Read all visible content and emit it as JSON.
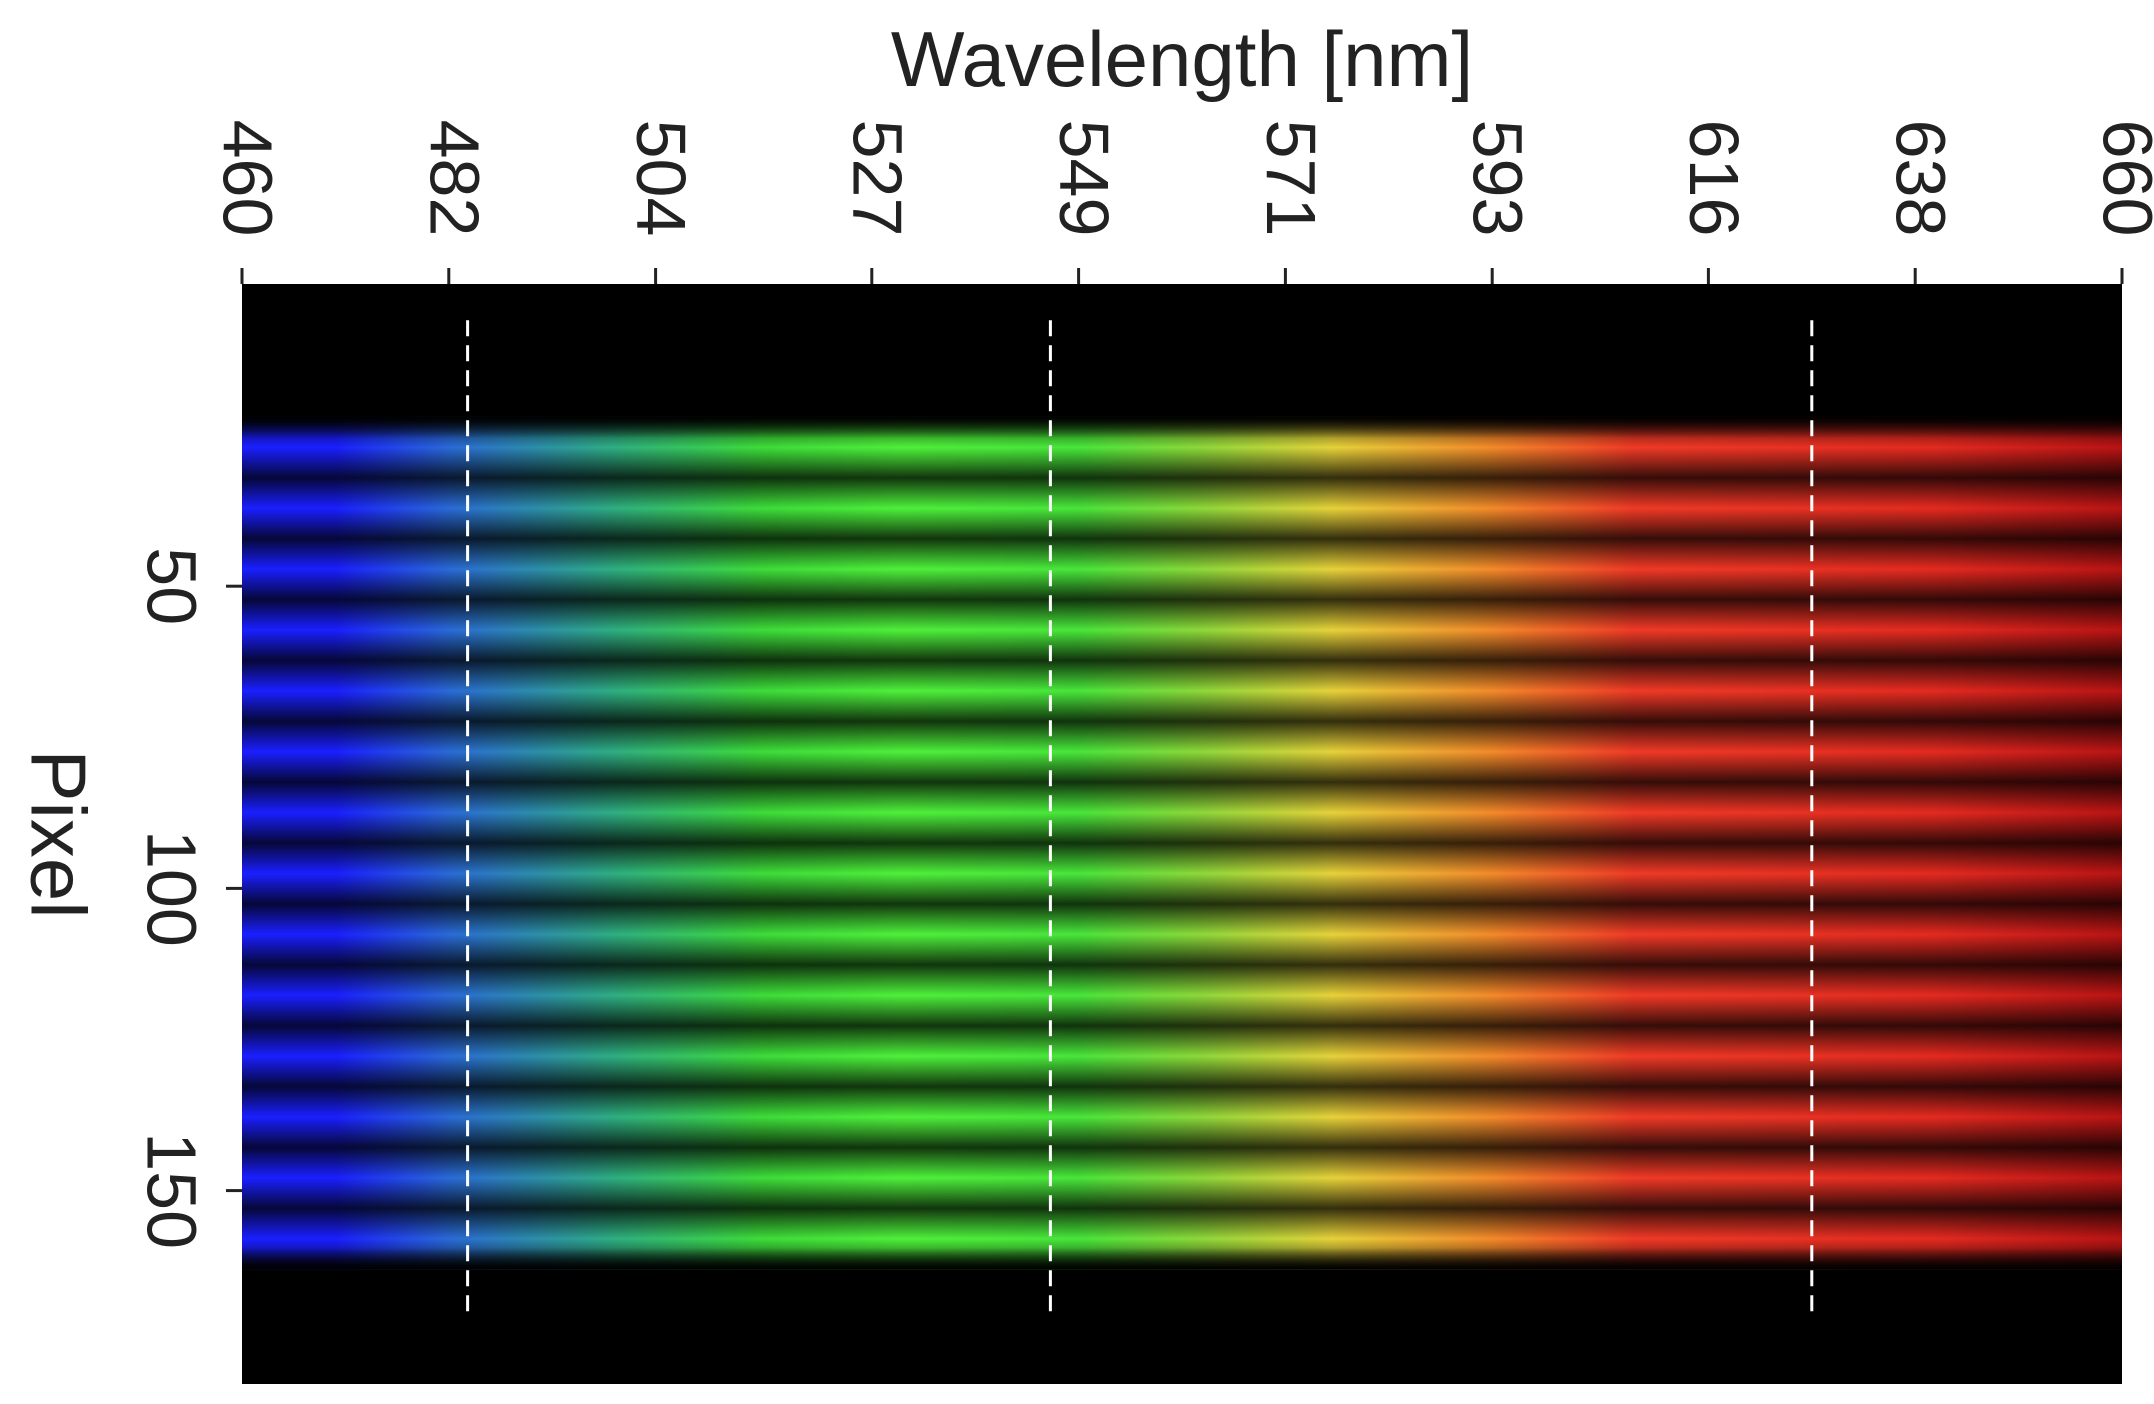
{
  "chart_data": {
    "type": "heatmap",
    "title": "",
    "xlabel": "Wavelength [nm]",
    "ylabel": "Pixel",
    "x_axis_position": "top",
    "x_tick_labels": [
      "460",
      "482",
      "504",
      "527",
      "549",
      "571",
      "593",
      "616",
      "638",
      "660"
    ],
    "x_tick_values": [
      460,
      482,
      504,
      527,
      549,
      571,
      593,
      616,
      638,
      660
    ],
    "xlim": [
      460,
      660
    ],
    "y_tick_labels": [
      "50",
      "100",
      "150"
    ],
    "y_tick_values": [
      50,
      100,
      150
    ],
    "ylim": [
      0,
      182
    ],
    "y_inverted": true,
    "tick_label_rotation": 90,
    "grid": false,
    "reference_lines": [
      {
        "axis": "x",
        "value": 484,
        "style": "dashed",
        "color": "#ffffff"
      },
      {
        "axis": "x",
        "value": 546,
        "style": "dashed",
        "color": "#ffffff"
      },
      {
        "axis": "x",
        "value": 627,
        "style": "dashed",
        "color": "#ffffff"
      }
    ],
    "emission_region": {
      "y_range": [
        22,
        163
      ],
      "stripe_count": 14,
      "stripe_spacing": 10,
      "spectrum_colors": [
        {
          "wavelength": 460,
          "color": "#1a1fff"
        },
        {
          "wavelength": 470,
          "color": "#1a1fff"
        },
        {
          "wavelength": 482,
          "color": "#2a6ad8"
        },
        {
          "wavelength": 500,
          "color": "#2fb080"
        },
        {
          "wavelength": 515,
          "color": "#3ddc3a"
        },
        {
          "wavelength": 530,
          "color": "#4ef03a"
        },
        {
          "wavelength": 549,
          "color": "#48e63a"
        },
        {
          "wavelength": 562,
          "color": "#8ed83a"
        },
        {
          "wavelength": 576,
          "color": "#e6d23a"
        },
        {
          "wavelength": 593,
          "color": "#f48a2a"
        },
        {
          "wavelength": 608,
          "color": "#f03a26"
        },
        {
          "wavelength": 640,
          "color": "#e42a20"
        },
        {
          "wavelength": 660,
          "color": "#b81414"
        }
      ]
    }
  }
}
